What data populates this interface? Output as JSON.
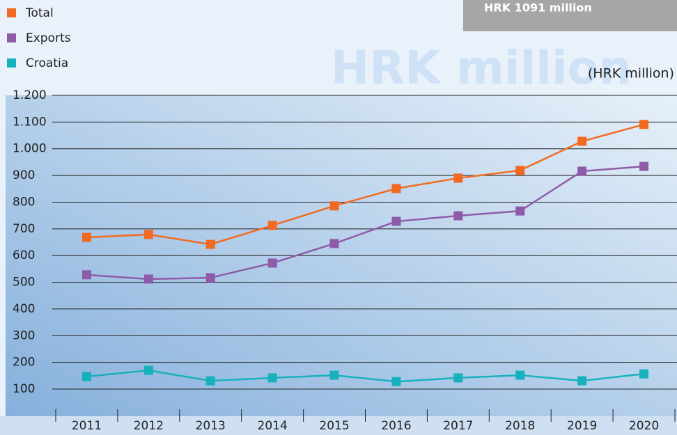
{
  "chart_data": {
    "type": "line",
    "annotation": "HRK 1091 million",
    "watermark": "HRK million",
    "unit_label": "(HRK million)",
    "categories": [
      "2011",
      "2012",
      "2013",
      "2014",
      "2015",
      "2016",
      "2017",
      "2018",
      "2019",
      "2020"
    ],
    "series": [
      {
        "name": "Total",
        "color": "#f26a21",
        "values": [
          668,
          679,
          642,
          713,
          786,
          851,
          890,
          919,
          1028,
          1091
        ]
      },
      {
        "name": "Exports",
        "color": "#8e5ba8",
        "values": [
          528,
          512,
          517,
          572,
          645,
          728,
          749,
          767,
          916,
          934
        ]
      },
      {
        "name": "Croatia",
        "color": "#17b1bd",
        "values": [
          147,
          170,
          131,
          142,
          152,
          128,
          142,
          152,
          131,
          157
        ]
      }
    ],
    "ylim": [
      0,
      1200
    ],
    "yticks": [
      100,
      200,
      300,
      400,
      500,
      600,
      700,
      800,
      900,
      {
        "value": 1000,
        "label": "1.000"
      },
      {
        "value": 1100,
        "label": "1.100"
      },
      {
        "value": 1200,
        "label": "1.200"
      }
    ],
    "grid": true,
    "legend": "top-left"
  }
}
